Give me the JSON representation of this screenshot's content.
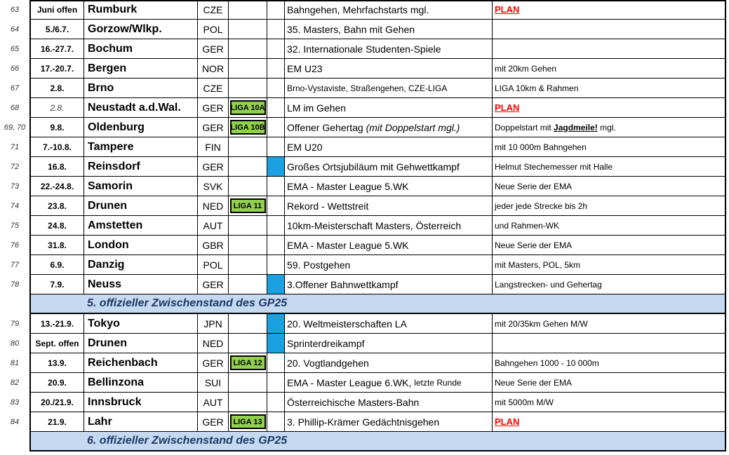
{
  "rows": [
    {
      "num": "63",
      "date": "Juni offen",
      "date_italic": false,
      "city": "Rumburk",
      "country": "CZE",
      "liga": "",
      "blue": false,
      "desc": "Bahngehen, Mehrfachstarts mgl.",
      "desc_small": false,
      "note": "PLAN",
      "note_plan": true
    },
    {
      "num": "64",
      "date": "5./6.7.",
      "date_italic": false,
      "city": "Gorzow/Wlkp.",
      "country": "POL",
      "liga": "",
      "blue": false,
      "desc": "35. Masters, Bahn mit Gehen",
      "desc_small": false,
      "note": "",
      "note_plan": false
    },
    {
      "num": "65",
      "date": "16.-27.7.",
      "date_italic": false,
      "city": "Bochum",
      "country": "GER",
      "liga": "",
      "blue": false,
      "desc": "32. Internationale Studenten-Spiele",
      "desc_small": false,
      "note": "",
      "note_plan": false
    },
    {
      "num": "66",
      "date": "17.-20.7.",
      "date_italic": false,
      "city": "Bergen",
      "country": "NOR",
      "liga": "",
      "blue": false,
      "desc": "EM U23",
      "desc_small": false,
      "note": "mit 20km Gehen",
      "note_plan": false
    },
    {
      "num": "67",
      "date": "2.8.",
      "date_italic": false,
      "city": "Brno",
      "country": "CZE",
      "liga": "",
      "blue": false,
      "desc": "Brno-Vystaviste, Straßengehen, CZE-LIGA",
      "desc_small": true,
      "note": "LIGA 10km & Rahmen",
      "note_plan": false
    },
    {
      "num": "68",
      "date": "2.8.",
      "date_italic": true,
      "city": "Neustadt a.d.Wal.",
      "country": "GER",
      "liga": "LIGA 10A",
      "blue": false,
      "desc": "LM im Gehen",
      "desc_small": false,
      "note": "PLAN",
      "note_plan": true
    },
    {
      "num": "69, 70",
      "date": "9.8.",
      "date_italic": false,
      "city": "Oldenburg",
      "country": "GER",
      "liga": "LIGA 10B",
      "blue": false,
      "desc": "Offener Gehertag",
      "desc_italic_suffix": "(mit Doppelstart mgl.)",
      "desc_small": false,
      "note": "Doppelstart mit",
      "note_bold": "Jagdmeile!",
      "note_suffix": "mgl.",
      "note_plan": false
    },
    {
      "num": "71",
      "date": "7.-10.8.",
      "date_italic": false,
      "city": "Tampere",
      "country": "FIN",
      "liga": "",
      "blue": false,
      "desc": "EM U20",
      "desc_small": false,
      "note": "mit 10 000m Bahngehen",
      "note_plan": false
    },
    {
      "num": "72",
      "date": "16.8.",
      "date_italic": false,
      "city": "Reinsdorf",
      "country": "GER",
      "liga": "",
      "blue": true,
      "desc": "Großes Ortsjubiläum mit Gehwettkampf",
      "desc_small": false,
      "note": "Helmut Stechemesser mit Halle",
      "note_plan": false
    },
    {
      "num": "73",
      "date": "22.-24.8.",
      "date_italic": false,
      "city": "Samorin",
      "country": "SVK",
      "liga": "",
      "blue": false,
      "desc": "EMA - Master League 5.WK",
      "desc_small": false,
      "note": "Neue Serie der EMA",
      "note_plan": false
    },
    {
      "num": "74",
      "date": "23.8.",
      "date_italic": false,
      "city": "Drunen",
      "country": "NED",
      "liga": "LIGA 11",
      "blue": false,
      "desc": "Rekord - Wettstreit",
      "desc_small": false,
      "note": "jeder jede Strecke bis 2h",
      "note_plan": false
    },
    {
      "num": "75",
      "date": "24.8.",
      "date_italic": false,
      "city": "Amstetten",
      "country": "AUT",
      "liga": "",
      "blue": false,
      "desc": "10km-Meisterschaft Masters, Österreich",
      "desc_small": false,
      "note": "und  Rahmen-WK",
      "note_plan": false
    },
    {
      "num": "76",
      "date": "31.8.",
      "date_italic": false,
      "city": "London",
      "country": "GBR",
      "liga": "",
      "blue": false,
      "desc": "EMA - Master League 5.WK",
      "desc_small": false,
      "note": "Neue Serie der EMA",
      "note_plan": false
    },
    {
      "num": "77",
      "date": "6.9.",
      "date_italic": false,
      "city": "Danzig",
      "country": "POL",
      "liga": "",
      "blue": false,
      "desc": "59. Postgehen",
      "desc_small": false,
      "note": "mit Masters, POL, 5km",
      "note_plan": false
    },
    {
      "num": "78",
      "date": "7.9.",
      "date_italic": false,
      "city": "Neuss",
      "country": "GER",
      "liga": "",
      "blue": true,
      "desc": "3.Offener Bahnwettkampf",
      "desc_small": false,
      "note": "Langstrecken- und Gehertag",
      "note_plan": false
    }
  ],
  "band1": "5. offizieller Zwischenstand des GP25",
  "rows2": [
    {
      "num": "79",
      "date": "13.-21.9.",
      "date_italic": false,
      "city": "Tokyo",
      "country": "JPN",
      "liga": "",
      "blue": true,
      "desc": "20. Weltmeisterschaften LA",
      "desc_small": false,
      "note": "mit 20/35km Gehen M/W",
      "note_plan": false
    },
    {
      "num": "80",
      "date": "Sept. offen",
      "date_italic": false,
      "city": "Drunen",
      "country": "NED",
      "liga": "",
      "blue": true,
      "desc": "Sprinterdreikampf",
      "desc_small": false,
      "note": "",
      "note_plan": false
    },
    {
      "num": "81",
      "date": "13.9.",
      "date_italic": false,
      "city": "Reichenbach",
      "country": "GER",
      "liga": "LIGA 12",
      "blue": false,
      "desc": "20. Vogtlandgehen",
      "desc_small": false,
      "note": "Bahngehen 1000 - 10 000m",
      "note_plan": false
    },
    {
      "num": "82",
      "date": "20.9.",
      "date_italic": false,
      "city": "Bellinzona",
      "country": "SUI",
      "liga": "",
      "blue": false,
      "desc": "EMA - Master League 6.WK,",
      "desc_small_suffix": "letzte Runde",
      "desc_small": false,
      "note": "Neue Serie der EMA",
      "note_plan": false
    },
    {
      "num": "83",
      "date": "20./21.9.",
      "date_italic": false,
      "city": "Innsbruck",
      "country": "AUT",
      "liga": "",
      "blue": false,
      "desc": "Österreichische Masters-Bahn",
      "desc_small": false,
      "note": "mit 5000m M/W",
      "note_plan": false
    },
    {
      "num": "84",
      "date": "21.9.",
      "date_italic": false,
      "city": "Lahr",
      "country": "GER",
      "liga": "LIGA 13",
      "blue": false,
      "desc": "3. Phillip-Krämer Gedächtnisgehen",
      "desc_small": false,
      "note": "PLAN",
      "note_plan": true
    }
  ],
  "band2": "6. offizieller Zwischenstand des GP25",
  "colors": {
    "liga_green": "#92d050",
    "marker_blue": "#1ba1e2",
    "band_bg": "#c5d9f1",
    "band_text": "#1f3864",
    "plan_red": "#ff0000"
  }
}
